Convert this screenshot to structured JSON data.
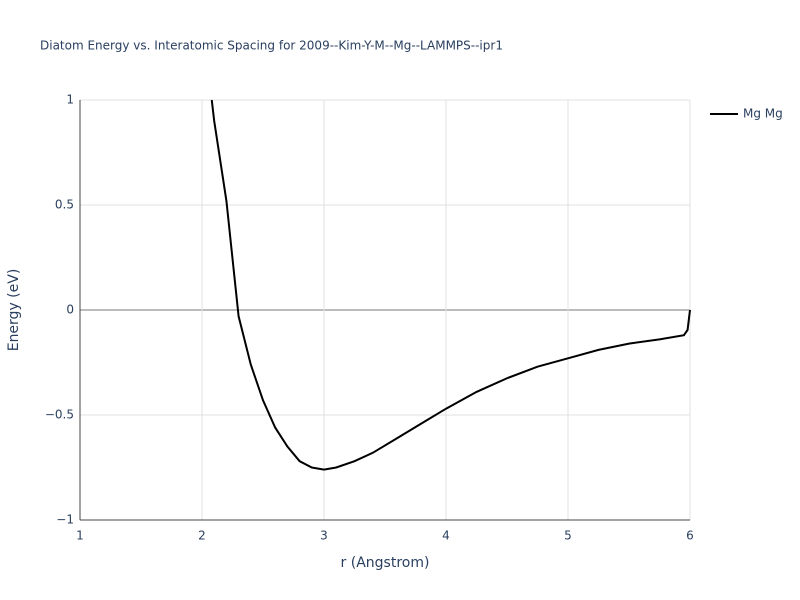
{
  "chart_data": {
    "type": "line",
    "title": "Diatom Energy vs. Interatomic Spacing for 2009--Kim-Y-M--Mg--LAMMPS--ipr1",
    "x_label": "r (Angstrom)",
    "y_label": "Energy (eV)",
    "x": [
      2.08,
      2.1,
      2.2,
      2.3,
      2.4,
      2.5,
      2.6,
      2.7,
      2.8,
      2.9,
      3.0,
      3.1,
      3.25,
      3.4,
      3.6,
      3.8,
      4.0,
      4.25,
      4.5,
      4.75,
      5.0,
      5.25,
      5.5,
      5.75,
      5.95,
      5.98,
      6.0
    ],
    "series": [
      {
        "name": "Mg Mg",
        "color": "#000000",
        "values": [
          1.0,
          0.9,
          0.52,
          -0.03,
          -0.26,
          -0.43,
          -0.56,
          -0.65,
          -0.72,
          -0.75,
          -0.76,
          -0.75,
          -0.72,
          -0.68,
          -0.61,
          -0.54,
          -0.47,
          -0.39,
          -0.325,
          -0.27,
          -0.23,
          -0.19,
          -0.16,
          -0.14,
          -0.12,
          -0.095,
          0.0
        ]
      }
    ],
    "xlim": [
      1,
      6
    ],
    "ylim": [
      -1,
      1
    ],
    "xticks": [
      1,
      2,
      3,
      4,
      5,
      6
    ],
    "yticks": [
      {
        "value": -1,
        "label": "−1"
      },
      {
        "value": -0.5,
        "label": "−0.5"
      },
      0,
      0.5,
      1
    ],
    "grid": true,
    "legend": "right"
  }
}
